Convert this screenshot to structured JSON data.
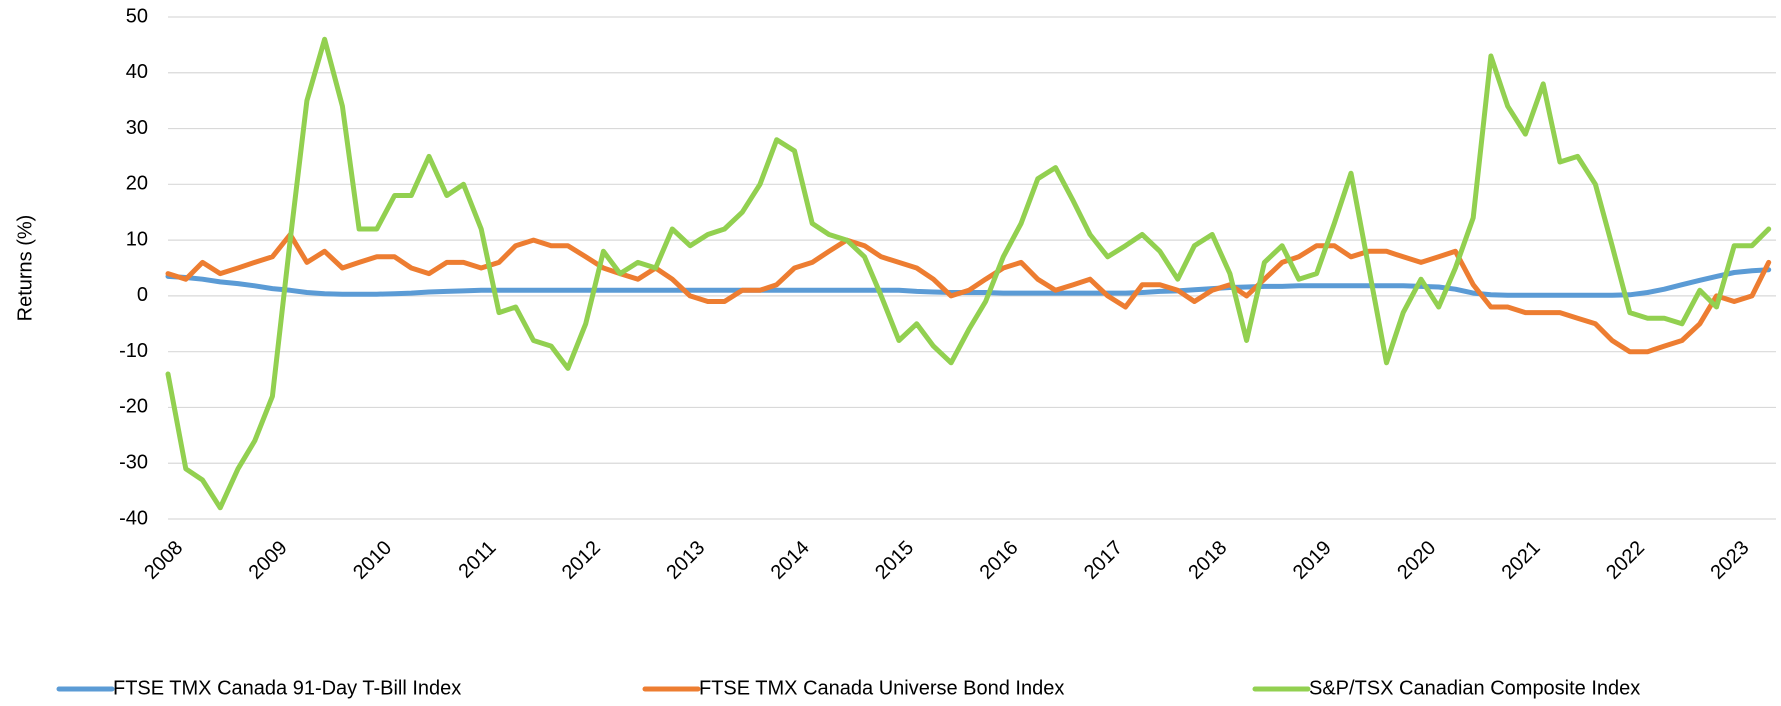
{
  "chart_data": {
    "type": "line",
    "y_label": "Returns (%)",
    "x": [
      2008,
      2008.17,
      2008.33,
      2008.5,
      2008.67,
      2008.83,
      2009,
      2009.17,
      2009.33,
      2009.5,
      2009.67,
      2009.83,
      2010,
      2010.17,
      2010.33,
      2010.5,
      2010.67,
      2010.83,
      2011,
      2011.17,
      2011.33,
      2011.5,
      2011.67,
      2011.83,
      2012,
      2012.17,
      2012.33,
      2012.5,
      2012.67,
      2012.83,
      2013,
      2013.17,
      2013.33,
      2013.5,
      2013.67,
      2013.83,
      2014,
      2014.17,
      2014.33,
      2014.5,
      2014.67,
      2014.83,
      2015,
      2015.17,
      2015.33,
      2015.5,
      2015.67,
      2015.83,
      2016,
      2016.17,
      2016.33,
      2016.5,
      2016.67,
      2016.83,
      2017,
      2017.17,
      2017.33,
      2017.5,
      2017.67,
      2017.83,
      2018,
      2018.17,
      2018.33,
      2018.5,
      2018.67,
      2018.83,
      2019,
      2019.17,
      2019.33,
      2019.5,
      2019.67,
      2019.83,
      2020,
      2020.17,
      2020.33,
      2020.5,
      2020.67,
      2020.83,
      2021,
      2021.17,
      2021.33,
      2021.5,
      2021.67,
      2021.83,
      2022,
      2022.17,
      2022.33,
      2022.5,
      2022.67,
      2022.83,
      2023,
      2023.17,
      2023.33
    ],
    "series": [
      {
        "name": "FTSE TMX Canada 91-Day T-Bill Index",
        "color": "#5b9bd5",
        "values": [
          3.5,
          3.3,
          3,
          2.5,
          2.2,
          1.8,
          1.3,
          1,
          0.6,
          0.4,
          0.3,
          0.3,
          0.3,
          0.4,
          0.5,
          0.7,
          0.8,
          0.9,
          1,
          1,
          1,
          1,
          1,
          1,
          1,
          1,
          1,
          1,
          1,
          1,
          1,
          1,
          1,
          1,
          1,
          1,
          1,
          1,
          1,
          1,
          1,
          1,
          1,
          0.8,
          0.7,
          0.6,
          0.6,
          0.6,
          0.5,
          0.5,
          0.5,
          0.5,
          0.5,
          0.5,
          0.5,
          0.5,
          0.6,
          0.8,
          0.9,
          1.1,
          1.3,
          1.5,
          1.6,
          1.7,
          1.7,
          1.8,
          1.8,
          1.8,
          1.8,
          1.8,
          1.8,
          1.8,
          1.7,
          1.6,
          1.2,
          0.5,
          0.2,
          0.1,
          0.1,
          0.1,
          0.1,
          0.1,
          0.1,
          0.1,
          0.2,
          0.6,
          1.2,
          2,
          2.8,
          3.5,
          4.2,
          4.5,
          4.7
        ]
      },
      {
        "name": "FTSE TMX Canada Universe Bond Index",
        "color": "#ed7d31",
        "values": [
          4,
          3,
          6,
          4,
          5,
          6,
          7,
          11,
          6,
          8,
          5,
          6,
          7,
          7,
          5,
          4,
          6,
          6,
          5,
          6,
          9,
          10,
          9,
          9,
          7,
          5,
          4,
          3,
          5,
          3,
          0,
          -1,
          -1,
          1,
          1,
          2,
          5,
          6,
          8,
          10,
          9,
          7,
          6,
          5,
          3,
          0,
          1,
          3,
          5,
          6,
          3,
          1,
          2,
          3,
          0,
          -2,
          2,
          2,
          1,
          -1,
          1,
          2,
          0,
          3,
          6,
          7,
          9,
          9,
          7,
          8,
          8,
          7,
          6,
          7,
          8,
          2,
          -2,
          -2,
          -3,
          -3,
          -3,
          -4,
          -5,
          -8,
          -10,
          -10,
          -9,
          -8,
          -5,
          0,
          -1,
          0,
          6
        ]
      },
      {
        "name": "S&P/TSX Canadian Composite Index",
        "color": "#92d050",
        "values": [
          -14,
          -31,
          -33,
          -38,
          -31,
          -26,
          -18,
          10,
          35,
          46,
          34,
          12,
          12,
          18,
          18,
          25,
          18,
          20,
          12,
          -3,
          -2,
          -8,
          -9,
          -13,
          -5,
          8,
          4,
          6,
          5,
          12,
          9,
          11,
          12,
          15,
          20,
          28,
          26,
          13,
          11,
          10,
          7,
          0,
          -8,
          -5,
          -9,
          -12,
          -6,
          -1,
          7,
          13,
          21,
          23,
          17,
          11,
          7,
          9,
          11,
          8,
          3,
          9,
          11,
          4,
          -8,
          6,
          9,
          3,
          4,
          13,
          22,
          5,
          -12,
          -3,
          3,
          -2,
          5,
          14,
          43,
          34,
          29,
          38,
          24,
          25,
          20,
          9,
          -3,
          -4,
          -4,
          -5,
          1,
          -2,
          9,
          9,
          12
        ]
      }
    ],
    "xlim": [
      2008,
      2023.4
    ],
    "xticks": [
      2008,
      2009,
      2010,
      2011,
      2012,
      2013,
      2014,
      2015,
      2016,
      2017,
      2018,
      2019,
      2020,
      2021,
      2022,
      2023
    ],
    "ylim": [
      -40,
      50
    ],
    "yticks": [
      -40,
      -30,
      -20,
      -10,
      0,
      10,
      20,
      30,
      40,
      50
    ],
    "grid": true,
    "legend": "bottom"
  }
}
